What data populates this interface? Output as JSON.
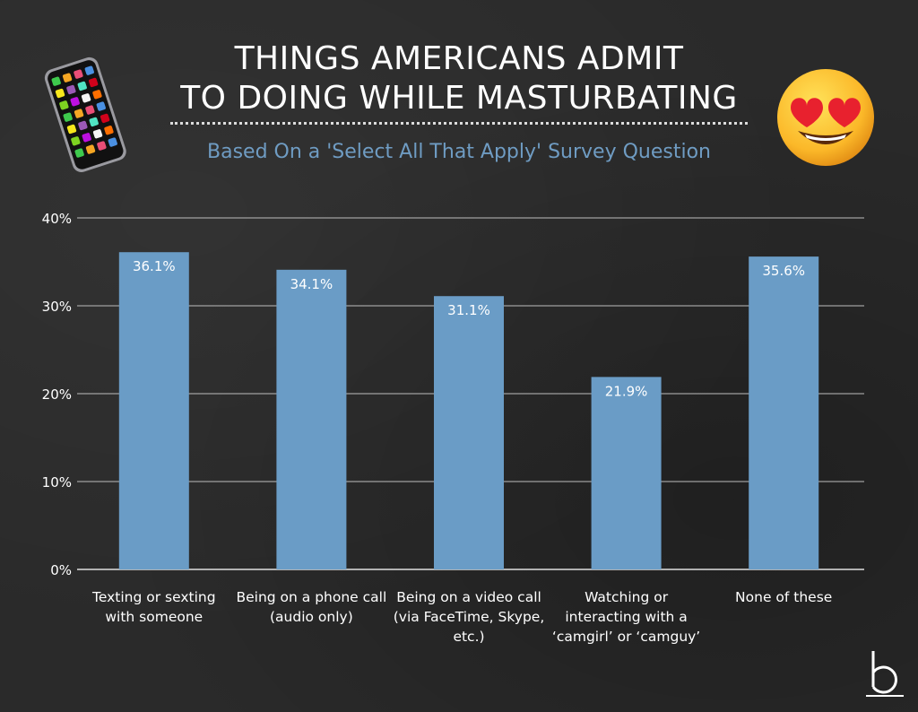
{
  "title_lines": [
    "THINGS AMERICANS ADMIT",
    "TO DOING WHILE MASTURBATING"
  ],
  "subtitle": "Based On a 'Select All That Apply' Survey Question",
  "icons": {
    "left": "smartphone-icon",
    "right": "heart-eyes-emoji-icon",
    "brand": "brand-logo-icon"
  },
  "colors": {
    "bar": "#6a9cc6",
    "subtitle": "#6f9cc3",
    "grid": "#bdbdbd",
    "background": "#2b2b2b"
  },
  "chart_data": {
    "type": "bar",
    "title": "THINGS AMERICANS ADMIT TO DOING WHILE MASTURBATING",
    "subtitle": "Based On a 'Select All That Apply' Survey Question",
    "categories": [
      "Texting or sexting with someone",
      "Being on a phone call (audio only)",
      "Being on a video call (via FaceTime, Skype, etc.)",
      "Watching or interacting with a ‘camgirl’ or ‘camguy’",
      "None of these"
    ],
    "values": [
      36.1,
      34.1,
      31.1,
      21.9,
      35.6
    ],
    "data_labels": [
      "36.1%",
      "34.1%",
      "31.1%",
      "21.9%",
      "35.6%"
    ],
    "ylim": [
      0,
      40
    ],
    "yticks": [
      "0%",
      "10%",
      "20%",
      "30%",
      "40%"
    ],
    "xlabel": "",
    "ylabel": "",
    "grid": true,
    "legend": false
  }
}
